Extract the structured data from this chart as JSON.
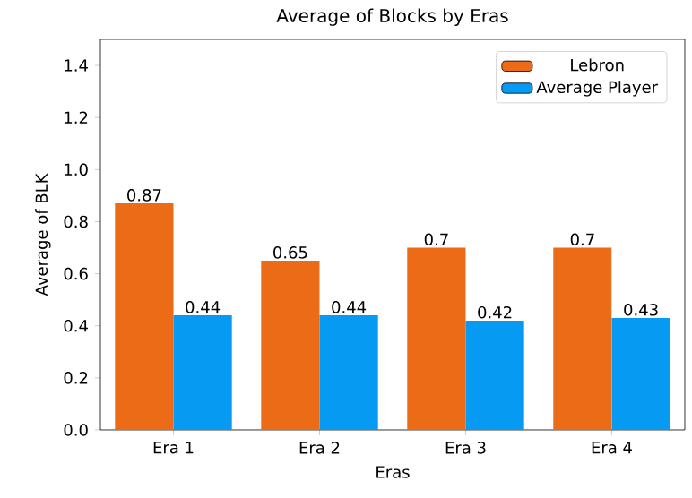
{
  "chart_data": {
    "type": "bar",
    "title": "Average of Blocks by Eras",
    "xlabel": "Eras",
    "ylabel": "Average of BLK",
    "categories": [
      "Era 1",
      "Era 2",
      "Era 3",
      "Era 4"
    ],
    "series": [
      {
        "name": "Lebron",
        "color": "#ec6b17",
        "values": [
          0.87,
          0.65,
          0.7,
          0.7
        ]
      },
      {
        "name": "Average Player",
        "color": "#069af3",
        "values": [
          0.44,
          0.44,
          0.42,
          0.43
        ]
      }
    ],
    "ylim": [
      0,
      1.5
    ],
    "yticks": [
      {
        "value": 0,
        "label": "0.0"
      },
      {
        "value": 0.2,
        "label": "0.2"
      },
      {
        "value": 0.4,
        "label": "0.4"
      },
      {
        "value": 0.6,
        "label": "0.6"
      },
      {
        "value": 0.8,
        "label": "0.8"
      },
      {
        "value": 1.0,
        "label": "1.0"
      },
      {
        "value": 1.2,
        "label": "1.2"
      },
      {
        "value": 1.4,
        "label": "1.4"
      }
    ],
    "data_labels": true,
    "legend": "top right"
  }
}
